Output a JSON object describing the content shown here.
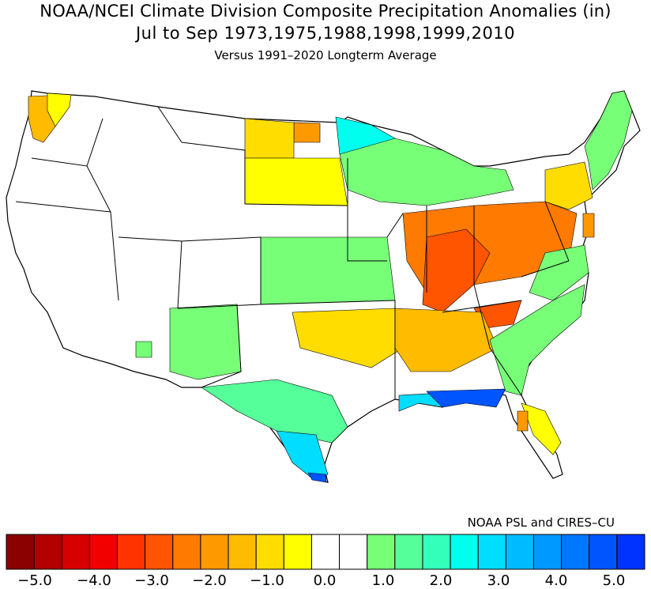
{
  "titles": {
    "line1": "NOAA/NCEI Climate Division Composite Precipitation Anomalies (in)",
    "line2": "Jul to Sep  1973,1975,1988,1998,1999,2010",
    "line3": "Versus 1991–2020 Longterm Average"
  },
  "credit": "NOAA PSL and CIRES–CU",
  "colorbar": {
    "colors": [
      "#8b0000",
      "#b30000",
      "#d60000",
      "#f20000",
      "#ff3300",
      "#ff5500",
      "#ff7a00",
      "#ff9900",
      "#ffbb00",
      "#ffdd00",
      "#ffff00",
      "#ffffff",
      "#ffffff",
      "#78ff78",
      "#55ff99",
      "#33ffbb",
      "#00ffee",
      "#00ddff",
      "#00bbff",
      "#0099ff",
      "#0077ff",
      "#0055ff",
      "#0033ff"
    ],
    "ticks": [
      "−5.0",
      "−4.0",
      "−3.0",
      "−2.0",
      "−1.0",
      "0.0",
      "1.0",
      "2.0",
      "3.0",
      "4.0",
      "5.0"
    ]
  },
  "map_regions": [
    {
      "name": "washington-west",
      "color": "#ffbb00"
    },
    {
      "name": "north-dakota-east",
      "color": "#ff9900"
    },
    {
      "name": "minnesota-north",
      "color": "#00ffee"
    },
    {
      "name": "upper-midwest",
      "color": "#78ff78"
    },
    {
      "name": "south-dakota",
      "color": "#ffff00"
    },
    {
      "name": "ohio-valley",
      "color": "#ff7a00"
    },
    {
      "name": "kentucky-tennessee",
      "color": "#ff5500"
    },
    {
      "name": "lower-mississippi",
      "color": "#ffbb00"
    },
    {
      "name": "gulf-coast",
      "color": "#00ddff"
    },
    {
      "name": "florida-panhandle",
      "color": "#0055ff"
    },
    {
      "name": "texas-south",
      "color": "#00ddff"
    },
    {
      "name": "texas-west",
      "color": "#55ff99"
    },
    {
      "name": "southeast-atlantic",
      "color": "#78ff78"
    },
    {
      "name": "new-england",
      "color": "#78ff78"
    },
    {
      "name": "mid-atlantic",
      "color": "#ffdd00"
    },
    {
      "name": "florida-peninsula",
      "color": "#ffff00"
    },
    {
      "name": "great-plains",
      "color": "#78ff78"
    },
    {
      "name": "kansas-oklahoma",
      "color": "#ffdd00"
    }
  ]
}
